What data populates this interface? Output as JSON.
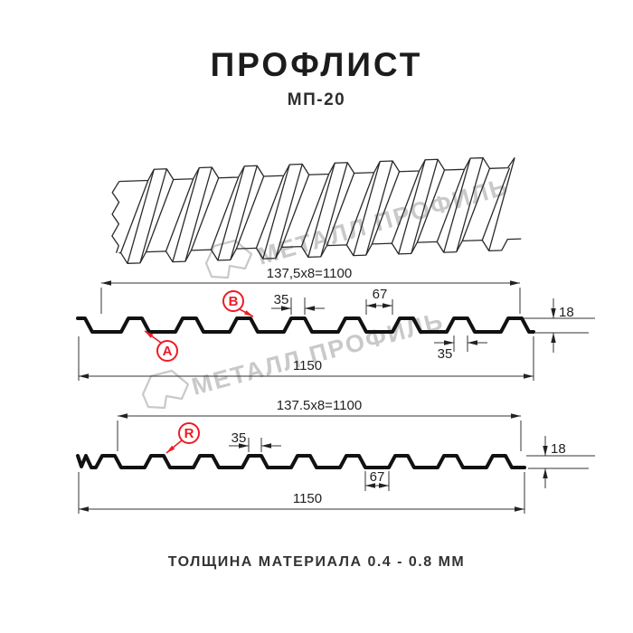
{
  "header": {
    "title": "ПРОФЛИСТ",
    "subtitle": "МП-20"
  },
  "watermark": {
    "brand": "МЕТАЛЛ ПРОФИЛЬ"
  },
  "sections": [
    {
      "pitch": "137,5x8=1100",
      "label_a": "A",
      "label_b": "B",
      "rib_top": "35",
      "flat": "67",
      "height": "18",
      "rib_bottom": "35",
      "total": "1150"
    },
    {
      "pitch": "137.5x8=1100",
      "label_r": "R",
      "rib_top": "35",
      "flat": "67",
      "height": "18",
      "total": "1150"
    }
  ],
  "footer": {
    "note": "ТОЛЩИНА МАТЕРИАЛА 0.4 - 0.8 ММ"
  },
  "colors": {
    "accent_red": "#ed1c24",
    "line": "#222222",
    "watermark": "#c9c9c9"
  }
}
